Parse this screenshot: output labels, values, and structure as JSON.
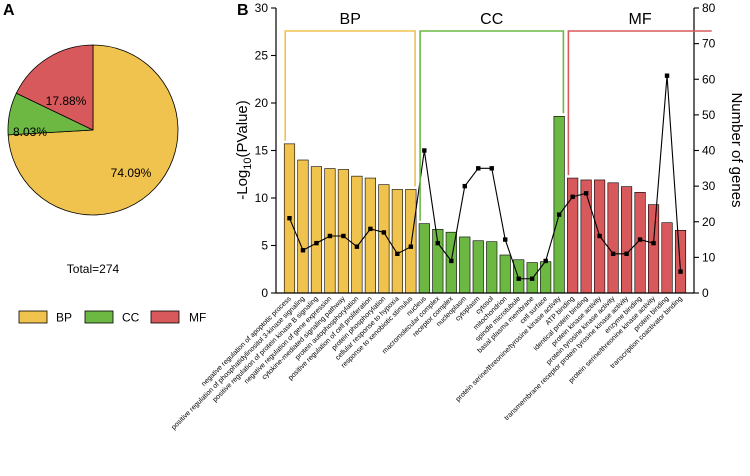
{
  "colors": {
    "BP": "#f0c24e",
    "CC": "#6cb843",
    "MF": "#d7595b",
    "line": "#000000"
  },
  "panels": {
    "a": "A",
    "b": "B"
  },
  "pie": {
    "total_label": "Total=274",
    "slices": [
      {
        "name": "BP",
        "percent": 74.09,
        "label": "74.09%"
      },
      {
        "name": "CC",
        "percent": 8.03,
        "label": "8.03%"
      },
      {
        "name": "MF",
        "percent": 17.88,
        "label": "17.88%"
      }
    ]
  },
  "legend": [
    "BP",
    "CC",
    "MF"
  ],
  "chart_data": [
    {
      "type": "pie",
      "title": "Total=274",
      "categories": [
        "BP",
        "CC",
        "MF"
      ],
      "values": [
        74.09,
        8.03,
        17.88
      ]
    },
    {
      "type": "bar",
      "ylabel_prefix": "-Log",
      "ylabel_sub": "10",
      "ylabel_suffix": "(PValue)",
      "y2label": "Number of genes",
      "ylim": [
        0,
        30
      ],
      "y2lim": [
        0,
        80
      ],
      "yticks": [
        "0",
        "5",
        "10",
        "15",
        "20",
        "25",
        "30"
      ],
      "y2ticks": [
        "0",
        "10",
        "20",
        "30",
        "40",
        "50",
        "60",
        "70",
        "80"
      ],
      "groups": [
        {
          "name": "BP",
          "start": 0,
          "end": 9
        },
        {
          "name": "CC",
          "start": 10,
          "end": 20
        },
        {
          "name": "MF",
          "start": 21,
          "end": 31
        }
      ],
      "categories": [
        "negative regulation of apoptotic process",
        "positive regulation of phosphatidylinositol 3-kinase signaling",
        "positive regulation of protein kinase B signaling",
        "negative regulation of gene expression",
        "cytokine-mediated signaling pathway",
        "protein autophosphorylation",
        "positive regulation of cell proliferation",
        "protein phosphorylation",
        "cellular response to hypoxia",
        "response to xenobiotic stimulus",
        "nucleus",
        "macromolecular complex",
        "receptor complex",
        "nucleoplasm",
        "cytoplasm",
        "cytosol",
        "mitochondrion",
        "spindle microtubule",
        "basal plasma membrane",
        "cell surface",
        "protein serine/threonine/tyrosine kinase activity",
        "ATP binding",
        "identical protein binding",
        "protein kinase activity",
        "protein tyrosine kinase activity",
        "transmembrane receptor protein tyrosine kinase activity",
        "enzyme binding",
        "protein serine/threonine kinase activity",
        "protein binding",
        "transcription coactivator binding"
      ],
      "series": [
        {
          "name": "-Log10(PValue)",
          "axis": "left",
          "values": [
            15.7,
            14.0,
            13.3,
            13.1,
            13.0,
            12.3,
            12.1,
            11.4,
            10.9,
            10.9,
            7.3,
            6.7,
            6.4,
            5.9,
            5.5,
            5.4,
            4.0,
            3.5,
            3.2,
            3.3,
            18.6,
            12.1,
            11.9,
            11.9,
            11.6,
            11.2,
            10.6,
            9.3,
            7.4,
            6.6
          ]
        },
        {
          "name": "Number of genes",
          "axis": "right",
          "values": [
            21,
            12,
            14,
            16,
            16,
            13,
            18,
            17,
            11,
            13,
            40,
            14,
            9,
            30,
            35,
            35,
            15,
            4,
            4,
            9,
            22,
            27,
            28,
            16,
            11,
            11,
            15,
            14,
            61,
            6
          ]
        }
      ]
    }
  ]
}
